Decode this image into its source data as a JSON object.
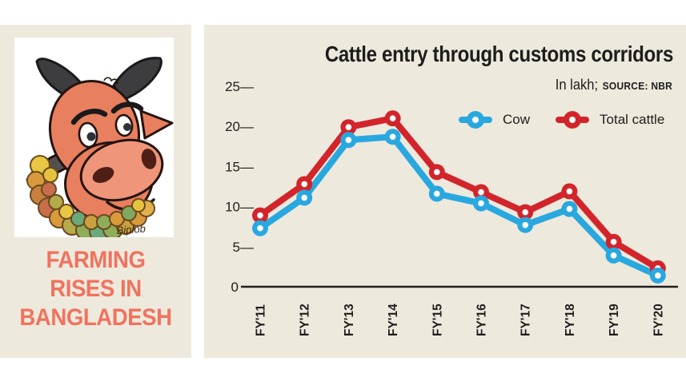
{
  "theme": {
    "panel_background": "#eee9dd",
    "card": "#ffffff",
    "ink": "#1d1d1b",
    "headline": "#f0735e",
    "cow_blue": "#29a8e0",
    "cattle_red": "#d2252b"
  },
  "left_panel": {
    "illustration": "cartoon-bull-head-with-flower-garland",
    "signature": "Biplob",
    "headline_lines": [
      "FARMING",
      "RISES IN",
      "BANGLADESH"
    ]
  },
  "chart": {
    "title": "Cattle entry through customs corridors",
    "unit_label": "In lakh;",
    "source_label": "SOURCE: NBR"
  },
  "chart_data": {
    "type": "line",
    "title": "Cattle entry through customs corridors",
    "unit": "lakh",
    "source": "NBR",
    "categories": [
      "FY'11",
      "FY'12",
      "FY'13",
      "FY'14",
      "FY'15",
      "FY'16",
      "FY'17",
      "FY'18",
      "FY'19",
      "FY'20"
    ],
    "series": [
      {
        "name": "Cow",
        "color": "#29a8e0",
        "values": [
          7.3,
          11.1,
          18.3,
          18.7,
          11.6,
          10.4,
          7.7,
          9.7,
          3.9,
          1.4
        ]
      },
      {
        "name": "Total cattle",
        "color": "#d2252b",
        "values": [
          8.9,
          12.8,
          19.9,
          21.0,
          14.3,
          11.8,
          9.3,
          11.9,
          5.6,
          2.3
        ]
      }
    ],
    "ylim": [
      0,
      25
    ],
    "yticks": [
      0,
      5,
      10,
      15,
      20,
      25
    ],
    "grid": false,
    "legend_position": "top-right",
    "x_label_rotation": -90
  }
}
